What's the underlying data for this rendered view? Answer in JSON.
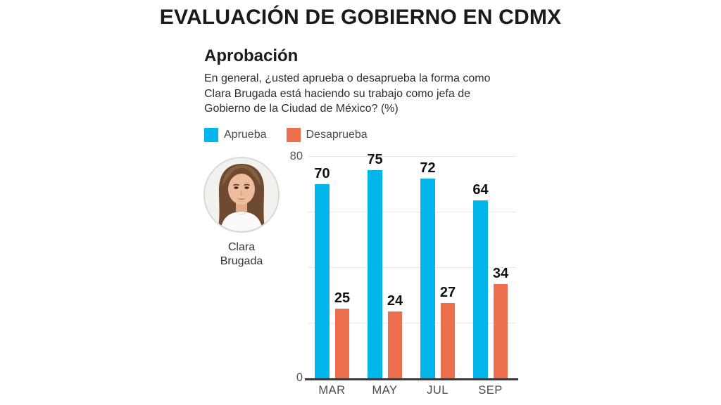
{
  "title": "EVALUACIÓN DE GOBIERNO EN CDMX",
  "section": {
    "heading": "Aprobación",
    "question": {
      "lines": [
        "En general, ¿usted aprueba o desaprueba la forma como",
        "Clara Brugada está haciendo su trabajo como jefa de",
        "Gobierno de la Ciudad de México?  (%)"
      ]
    }
  },
  "legend": [
    {
      "label": "Aprueba",
      "color": "#00b6ea"
    },
    {
      "label": "Desaprueba",
      "color": "#ec6e4c"
    }
  ],
  "person": {
    "name_line1": "Clara",
    "name_line2": "Brugada",
    "portrait_icon": "woman-portrait-photo"
  },
  "colors": {
    "approve": "#00b6ea",
    "disapprove": "#ec6e4c",
    "gridline": "#e7e7e7",
    "axis": "#3a3a3a",
    "title_text": "#1a1a1a"
  },
  "chart_data": {
    "type": "bar",
    "title": "Aprobación",
    "categories": [
      "MAR",
      "MAY",
      "JUL",
      "SEP"
    ],
    "series": [
      {
        "name": "Aprueba",
        "color": "#00b6ea",
        "values": [
          70,
          75,
          72,
          64
        ]
      },
      {
        "name": "Desaprueba",
        "color": "#ec6e4c",
        "values": [
          25,
          24,
          27,
          34
        ]
      }
    ],
    "xlabel": "",
    "ylabel": "",
    "ylim": [
      0,
      80
    ],
    "yticks_shown": [
      0,
      80
    ],
    "gridlines": [
      20,
      40,
      60,
      80
    ],
    "grid": true,
    "legend_position": "top-left",
    "value_labels": true
  }
}
